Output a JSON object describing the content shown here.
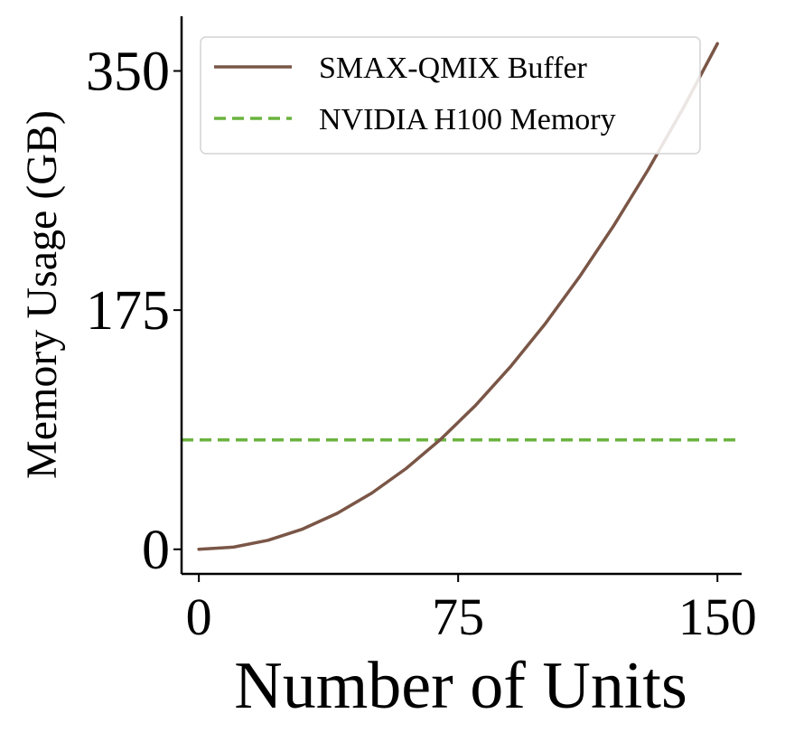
{
  "chart_data": {
    "type": "line",
    "xlabel": "Number of Units",
    "ylabel": "Memory Usage (GB)",
    "xlim": [
      -5,
      157
    ],
    "ylim": [
      -18,
      390
    ],
    "xticks": [
      0,
      75,
      150
    ],
    "xtick_labels": [
      "0",
      "75",
      "150"
    ],
    "yticks": [
      0,
      175,
      350
    ],
    "ytick_labels": [
      "0",
      "175",
      "350"
    ],
    "grid": false,
    "legend_position": "top-right",
    "series": [
      {
        "name": "SMAX-QMIX Buffer",
        "style": "solid",
        "color": "#7a5647",
        "x": [
          0,
          10,
          20,
          30,
          40,
          50,
          60,
          70,
          80,
          90,
          100,
          110,
          120,
          130,
          140,
          150
        ],
        "y": [
          0,
          1.6,
          6.6,
          14.8,
          26.3,
          41.1,
          59.2,
          80.6,
          105.2,
          133.2,
          164.4,
          199.0,
          236.8,
          277.9,
          322.3,
          370.0
        ]
      },
      {
        "name": "NVIDIA H100 Memory",
        "style": "dashed",
        "color": "#6ab33f",
        "x": [
          -5,
          157
        ],
        "y": [
          80,
          80
        ]
      }
    ]
  }
}
